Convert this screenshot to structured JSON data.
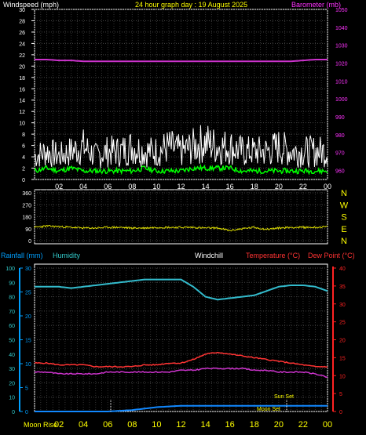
{
  "header": {
    "left_label": "Windspeed (mph)",
    "center_title": "24 hour graph day : 19 August 2025",
    "right_label": "Barometer (mb)"
  },
  "bottom_header": {
    "rainfall": "Rainfall (mm)",
    "humidity": "Humidity",
    "windchill": "Windchill",
    "temperature": "Temperature (°C)",
    "dewpoint": "Dew Point (°C)"
  },
  "annotations": {
    "sun_set": "Sun Set",
    "moon_set": "Moon Set",
    "moon_rise": "Moon Rise"
  },
  "colors": {
    "gust": "#ffffff",
    "wind": "#00ff00",
    "barometer": "#cc33cc",
    "direction": "#dddd00",
    "humidity": "#33bbcc",
    "temperature": "#ff3333",
    "dewpoint": "#cc33cc",
    "rain": "#1188ff",
    "rain_axis": "#00a0ff",
    "humidity_axis": "#33cccc",
    "temp_axis": "#ff2222"
  },
  "x_ticks": [
    "02",
    "04",
    "06",
    "08",
    "10",
    "12",
    "14",
    "16",
    "18",
    "20",
    "22",
    "00"
  ],
  "chart_data": [
    {
      "type": "line",
      "title": "24 hour graph day : 19 August 2025",
      "ylabel": "Windspeed (mph)",
      "y2label": "Barometer (mb)",
      "ylim": [
        0,
        30
      ],
      "y_ticks": [
        0,
        2,
        4,
        6,
        8,
        10,
        12,
        14,
        16,
        18,
        20,
        22,
        24,
        26,
        28,
        30
      ],
      "y2lim": [
        955,
        1050
      ],
      "y2_ticks": [
        960,
        970,
        980,
        990,
        1000,
        1010,
        1020,
        1030,
        1040,
        1050
      ],
      "x": [
        0,
        1,
        2,
        3,
        4,
        5,
        6,
        7,
        8,
        9,
        10,
        11,
        12,
        13,
        14,
        15,
        16,
        17,
        18,
        19,
        20,
        21,
        22,
        23,
        24
      ],
      "series": [
        {
          "name": "gust",
          "values": [
            5,
            6,
            5,
            6,
            7,
            5,
            6,
            6,
            7,
            6,
            6,
            7,
            6,
            7,
            8,
            7,
            7,
            6,
            6,
            6,
            7,
            6,
            6,
            6,
            6
          ]
        },
        {
          "name": "windspeed",
          "values": [
            1.5,
            2,
            1.5,
            2,
            1.5,
            1.5,
            1.5,
            1.5,
            1.5,
            2,
            1.5,
            1.5,
            1.5,
            2,
            2,
            2,
            2,
            1.5,
            1.5,
            1.5,
            1.5,
            1.5,
            1.5,
            1.5,
            1.5
          ]
        },
        {
          "name": "barometer",
          "values": [
            1022,
            1022,
            1021.5,
            1021.5,
            1021,
            1021,
            1021,
            1021,
            1021,
            1021,
            1021,
            1021,
            1021,
            1021,
            1021,
            1021,
            1021,
            1021,
            1021,
            1021,
            1021,
            1021,
            1021.5,
            1022,
            1022
          ]
        }
      ]
    },
    {
      "type": "line",
      "ylim": [
        0,
        360
      ],
      "y_ticks": [
        0,
        90,
        180,
        270,
        360
      ],
      "y2_labels": [
        "N",
        "W",
        "S",
        "E",
        "N"
      ],
      "x": [
        0,
        1,
        2,
        3,
        4,
        5,
        6,
        7,
        8,
        9,
        10,
        11,
        12,
        13,
        14,
        15,
        16,
        17,
        18,
        19,
        20,
        21,
        22,
        23,
        24
      ],
      "series": [
        {
          "name": "wind direction",
          "values": [
            100,
            110,
            105,
            100,
            95,
            95,
            100,
            100,
            95,
            95,
            100,
            100,
            100,
            100,
            95,
            95,
            75,
            90,
            100,
            85,
            95,
            100,
            100,
            100,
            105
          ]
        }
      ]
    },
    {
      "type": "line",
      "ylabel": "Rainfall (mm)",
      "ylim": [
        0,
        100
      ],
      "y_ticks": [
        0,
        10,
        20,
        30,
        40,
        50,
        60,
        70,
        80,
        90,
        100
      ],
      "humidity_ticks": [
        0,
        5,
        10,
        15,
        20,
        25,
        30
      ],
      "y2label": "Temperature (°C)",
      "y2lim": [
        0,
        40
      ],
      "y2_ticks": [
        0,
        5,
        10,
        15,
        20,
        25,
        30,
        35,
        40
      ],
      "x": [
        0,
        1,
        2,
        3,
        4,
        5,
        6,
        7,
        8,
        9,
        10,
        11,
        12,
        13,
        14,
        15,
        16,
        17,
        18,
        19,
        20,
        21,
        22,
        23,
        24
      ],
      "series": [
        {
          "name": "humidity",
          "values": [
            87,
            87,
            87,
            86,
            87,
            88,
            89,
            90,
            91,
            92,
            92,
            92,
            92,
            87,
            80,
            78,
            79,
            80,
            81,
            84,
            87,
            88,
            88,
            87,
            84
          ]
        },
        {
          "name": "temperature",
          "values": [
            13.5,
            13.5,
            13,
            13,
            13,
            12.5,
            12.5,
            12.5,
            12.5,
            13,
            13,
            13.5,
            13.5,
            14.5,
            16,
            16.5,
            16,
            15.5,
            15,
            14.5,
            14,
            13.5,
            13,
            12.5,
            12.5
          ]
        },
        {
          "name": "dewpoint",
          "values": [
            11,
            11,
            10.5,
            10.5,
            10.5,
            10.5,
            11,
            11,
            11,
            11,
            11,
            11,
            11.5,
            11.5,
            12,
            12,
            12,
            12,
            11.5,
            11.5,
            11,
            11,
            11,
            10.5,
            9.5
          ]
        },
        {
          "name": "rain",
          "values": [
            0,
            0,
            0,
            0,
            0,
            0,
            0,
            0.5,
            1,
            2,
            3,
            3.5,
            4,
            4,
            4,
            4,
            4,
            4,
            4,
            4,
            4,
            4,
            4,
            4,
            4
          ]
        }
      ]
    }
  ]
}
